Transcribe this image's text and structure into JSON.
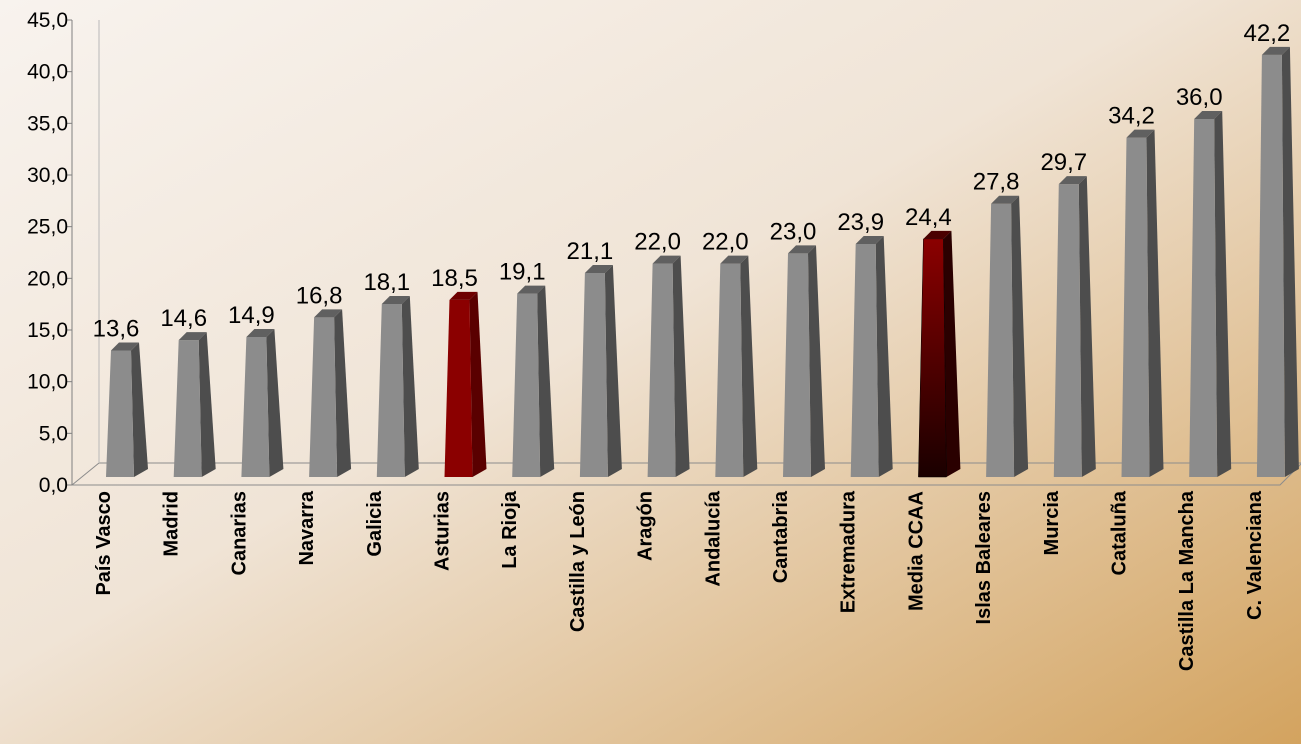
{
  "chart_data": {
    "type": "bar",
    "categories": [
      "País Vasco",
      "Madrid",
      "Canarias",
      "Navarra",
      "Galicia",
      "Asturias",
      "La Rioja",
      "Castilla y León",
      "Aragón",
      "Andalucía",
      "Cantabria",
      "Extremadura",
      "Media CCAA",
      "Islas Baleares",
      "Murcia",
      "Cataluña",
      "Castilla La Mancha",
      "C. Valenciana"
    ],
    "values": [
      13.6,
      14.6,
      14.9,
      16.8,
      18.1,
      18.5,
      19.1,
      21.1,
      22.0,
      22.0,
      23.0,
      23.9,
      24.4,
      27.8,
      29.7,
      34.2,
      36.0,
      42.2
    ],
    "value_labels": [
      "13,6",
      "14,6",
      "14,9",
      "16,8",
      "18,1",
      "18,5",
      "19,1",
      "21,1",
      "22,0",
      "22,0",
      "23,0",
      "23,9",
      "24,4",
      "27,8",
      "29,7",
      "34,2",
      "36,0",
      "42,2"
    ],
    "y_ticks": [
      "0,0",
      "5,0",
      "10,0",
      "15,0",
      "20,0",
      "25,0",
      "30,0",
      "35,0",
      "40,0",
      "45,0"
    ],
    "ylim": [
      0,
      45
    ],
    "title": "",
    "xlabel": "",
    "ylabel": "",
    "grid": false,
    "legend": "none",
    "bar_style": "3d-pyramid",
    "highlight_categories": [
      "Asturias",
      "Media CCAA"
    ],
    "colors": {
      "bar": "#8c8c8c",
      "highlight": "#8b0000",
      "average": "#6a0000",
      "background_light": "#f8f3ee",
      "background_dark": "#d3a35f"
    }
  }
}
